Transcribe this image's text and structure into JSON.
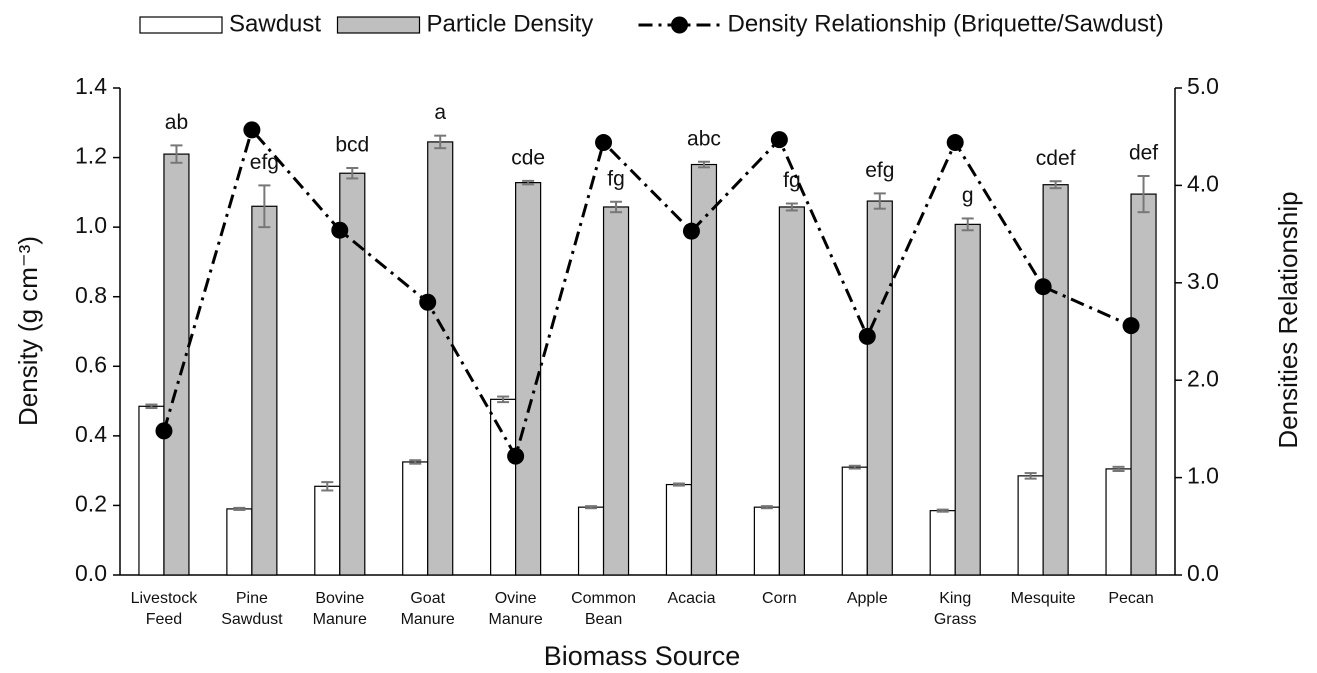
{
  "chart_data": {
    "type": "bar",
    "xlabel": "Biomass Source",
    "ylabel": "Density (g cm⁻³)",
    "y2label": "Densities Relationship",
    "categories": [
      "Livestock Feed",
      "Pine Sawdust",
      "Bovine Manure",
      "Goat Manure",
      "Ovine Manure",
      "Common Bean",
      "Acacia",
      "Corn",
      "Apple",
      "King Grass",
      "Mesquite",
      "Pecan"
    ],
    "series": [
      {
        "name": "Sawdust",
        "type": "bar",
        "color": "#ffffff",
        "values": [
          0.485,
          0.19,
          0.255,
          0.325,
          0.505,
          0.195,
          0.26,
          0.195,
          0.31,
          0.185,
          0.285,
          0.305
        ],
        "errors": [
          0.005,
          0.003,
          0.012,
          0.005,
          0.008,
          0.003,
          0.003,
          0.003,
          0.004,
          0.003,
          0.008,
          0.006
        ]
      },
      {
        "name": "Particle Density",
        "type": "bar",
        "color": "#bfbfbf",
        "values": [
          1.21,
          1.06,
          1.155,
          1.245,
          1.128,
          1.058,
          1.18,
          1.058,
          1.075,
          1.008,
          1.122,
          1.095
        ],
        "errors": [
          0.025,
          0.06,
          0.015,
          0.018,
          0.005,
          0.015,
          0.008,
          0.01,
          0.022,
          0.017,
          0.01,
          0.052
        ],
        "letters": [
          "ab",
          "efg",
          "bcd",
          "a",
          "cde",
          "fg",
          "abc",
          "fg",
          "efg",
          "g",
          "cdef",
          "def"
        ]
      },
      {
        "name": "Density Relationship (Briquette/Sawdust)",
        "type": "line",
        "axis": "y2",
        "color": "#000000",
        "values": [
          1.48,
          4.57,
          3.54,
          2.8,
          1.22,
          4.44,
          3.53,
          4.47,
          2.45,
          4.44,
          2.96,
          2.56
        ]
      }
    ],
    "ylim": [
      0,
      1.4
    ],
    "yticks": [
      {
        "value": 0,
        "label": "0.0"
      },
      {
        "value": 0.2,
        "label": "0.2"
      },
      {
        "value": 0.4,
        "label": "0.4"
      },
      {
        "value": 0.6,
        "label": "0.6"
      },
      {
        "value": 0.8,
        "label": "0.8"
      },
      {
        "value": 1,
        "label": "1.0"
      },
      {
        "value": 1.2,
        "label": "1.2"
      },
      {
        "value": 1.4,
        "label": "1.4"
      }
    ],
    "y2lim": [
      0,
      5
    ],
    "y2ticks": [
      {
        "value": 0,
        "label": "0.0"
      },
      {
        "value": 1,
        "label": "1.0"
      },
      {
        "value": 2,
        "label": "2.0"
      },
      {
        "value": 3,
        "label": "3.0"
      },
      {
        "value": 4,
        "label": "4.0"
      },
      {
        "value": 5,
        "label": "5.0"
      }
    ],
    "legend": "top",
    "grid": false
  }
}
